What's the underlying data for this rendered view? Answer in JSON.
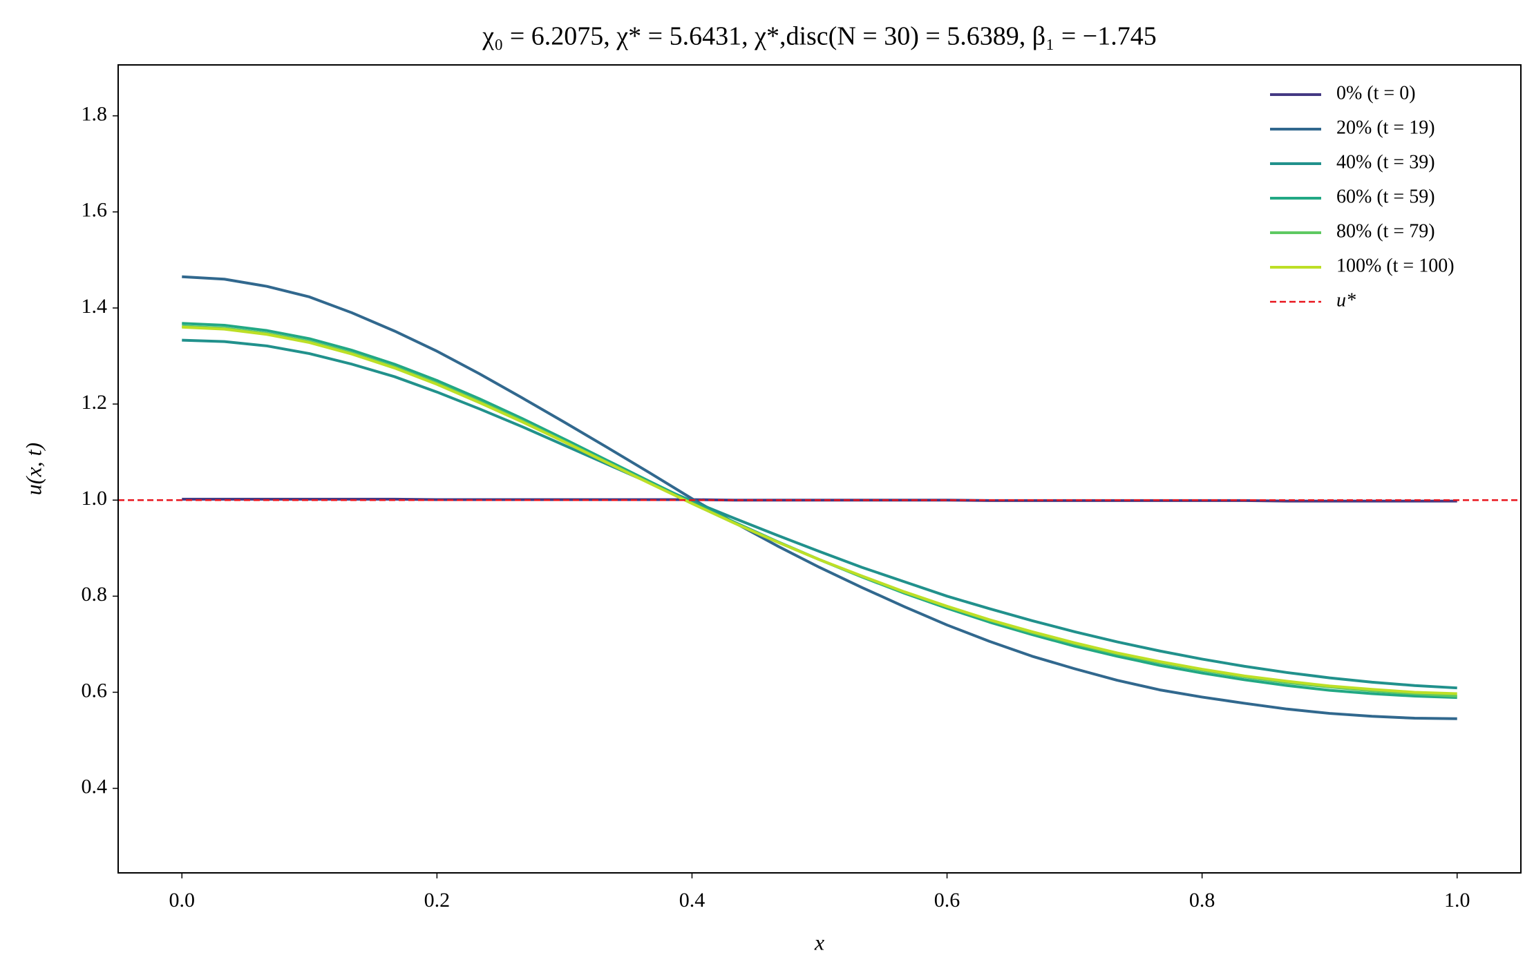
{
  "chart_data": {
    "type": "line",
    "title": "χ₀ = 6.2075,  χ* = 5.6431,  χ*,disc(N = 30) = 5.6389,  β₁ = −1.745",
    "xlabel": "x",
    "ylabel": "u(x, t)",
    "x": [
      0,
      0.0333,
      0.0667,
      0.1,
      0.1333,
      0.1667,
      0.2,
      0.2333,
      0.2667,
      0.3,
      0.3333,
      0.3667,
      0.4,
      0.4333,
      0.4667,
      0.5,
      0.5333,
      0.5667,
      0.6,
      0.6333,
      0.6667,
      0.7,
      0.7333,
      0.7667,
      0.8,
      0.8333,
      0.8667,
      0.9,
      0.9333,
      0.9667,
      1
    ],
    "series": [
      {
        "name": "0% (t = 0)",
        "color": "#443983",
        "values": [
          1.002,
          1.002,
          1.002,
          1.002,
          1.002,
          1.002,
          1.001,
          1.001,
          1.001,
          1.001,
          1.001,
          1.001,
          1.001,
          1.0,
          1.0,
          1.0,
          1.0,
          1.0,
          1.0,
          0.999,
          0.999,
          0.999,
          0.999,
          0.999,
          0.999,
          0.999,
          0.998,
          0.998,
          0.998,
          0.998,
          0.998
        ]
      },
      {
        "name": "20% (t = 19)",
        "color": "#31688e",
        "values": [
          1.465,
          1.46,
          1.445,
          1.423,
          1.39,
          1.352,
          1.31,
          1.263,
          1.213,
          1.162,
          1.11,
          1.057,
          1.003,
          0.953,
          0.905,
          0.86,
          0.818,
          0.778,
          0.74,
          0.706,
          0.675,
          0.649,
          0.625,
          0.605,
          0.59,
          0.577,
          0.565,
          0.556,
          0.55,
          0.546,
          0.545
        ]
      },
      {
        "name": "40% (t = 39)",
        "color": "#21918c",
        "values": [
          1.333,
          1.33,
          1.321,
          1.305,
          1.283,
          1.257,
          1.225,
          1.19,
          1.153,
          1.114,
          1.075,
          1.036,
          0.998,
          0.962,
          0.927,
          0.893,
          0.86,
          0.83,
          0.8,
          0.774,
          0.749,
          0.726,
          0.705,
          0.686,
          0.669,
          0.654,
          0.641,
          0.63,
          0.621,
          0.614,
          0.609
        ]
      },
      {
        "name": "60% (t = 59)",
        "color": "#22a884",
        "values": [
          1.368,
          1.364,
          1.353,
          1.336,
          1.312,
          1.283,
          1.249,
          1.211,
          1.17,
          1.127,
          1.083,
          1.039,
          0.996,
          0.954,
          0.914,
          0.876,
          0.84,
          0.806,
          0.775,
          0.746,
          0.72,
          0.696,
          0.675,
          0.656,
          0.64,
          0.626,
          0.614,
          0.604,
          0.597,
          0.592,
          0.589
        ]
      },
      {
        "name": "80% (t = 79)",
        "color": "#5ec962",
        "values": [
          1.362,
          1.358,
          1.347,
          1.33,
          1.306,
          1.277,
          1.243,
          1.205,
          1.165,
          1.122,
          1.079,
          1.036,
          0.993,
          0.952,
          0.913,
          0.876,
          0.841,
          0.808,
          0.778,
          0.75,
          0.724,
          0.701,
          0.68,
          0.662,
          0.646,
          0.632,
          0.62,
          0.611,
          0.603,
          0.597,
          0.592
        ]
      },
      {
        "name": "100% (t = 100)",
        "color": "#bddf26",
        "values": [
          1.36,
          1.356,
          1.345,
          1.328,
          1.304,
          1.275,
          1.241,
          1.203,
          1.163,
          1.121,
          1.078,
          1.035,
          0.993,
          0.952,
          0.913,
          0.876,
          0.842,
          0.809,
          0.779,
          0.751,
          0.726,
          0.703,
          0.682,
          0.664,
          0.648,
          0.634,
          0.623,
          0.613,
          0.606,
          0.6,
          0.597
        ]
      }
    ],
    "reference_line": {
      "name": "u*",
      "y": 1,
      "color": "#e8141c"
    },
    "xlim": [
      -0.05,
      1.05
    ],
    "ylim": [
      0.224,
      1.906
    ],
    "xticks": [
      {
        "value": 0,
        "label": "0.0"
      },
      0.2,
      0.4,
      0.6,
      0.8,
      {
        "value": 1,
        "label": "1.0"
      }
    ],
    "yticks": [
      0.4,
      0.6,
      0.8,
      {
        "value": 1,
        "label": "1.0"
      },
      1.2,
      1.4,
      1.6,
      1.8
    ],
    "legend": "upper right"
  }
}
